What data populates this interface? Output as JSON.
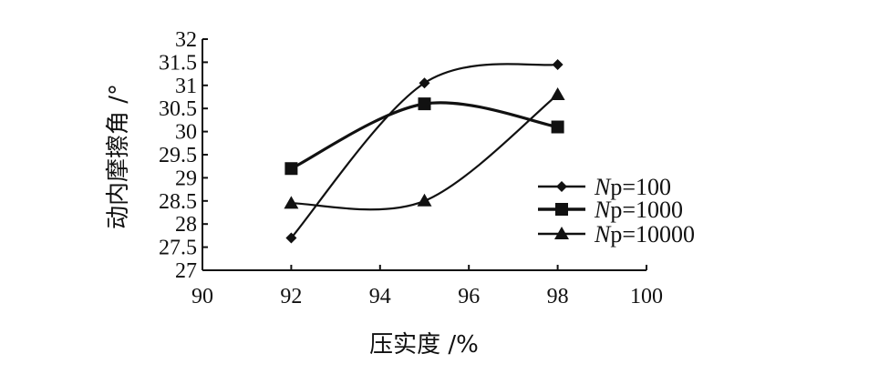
{
  "chart_data": {
    "type": "line",
    "title": "",
    "xlabel": "压实度 /%",
    "ylabel": "动内摩擦角 /°",
    "xlim": [
      90,
      100
    ],
    "ylim": [
      27,
      32
    ],
    "xticks": [
      "90",
      "92",
      "94",
      "96",
      "98",
      "100"
    ],
    "yticks": [
      "27",
      "27.5",
      "28",
      "28.5",
      "29",
      "29.5",
      "30",
      "30.5",
      "31",
      "31.5",
      "32"
    ],
    "x": [
      92,
      95,
      98
    ],
    "grid": false,
    "legend_position": "right",
    "series": [
      {
        "name_prefix": "N",
        "name_suffix": "p=100",
        "marker": "diamond",
        "values": [
          27.7,
          31.05,
          31.45
        ]
      },
      {
        "name_prefix": "N",
        "name_suffix": "p=1000",
        "marker": "square",
        "values": [
          29.2,
          30.6,
          30.1
        ]
      },
      {
        "name_prefix": "N",
        "name_suffix": "p=10000",
        "marker": "triangle",
        "values": [
          28.45,
          28.5,
          30.8
        ]
      }
    ]
  }
}
